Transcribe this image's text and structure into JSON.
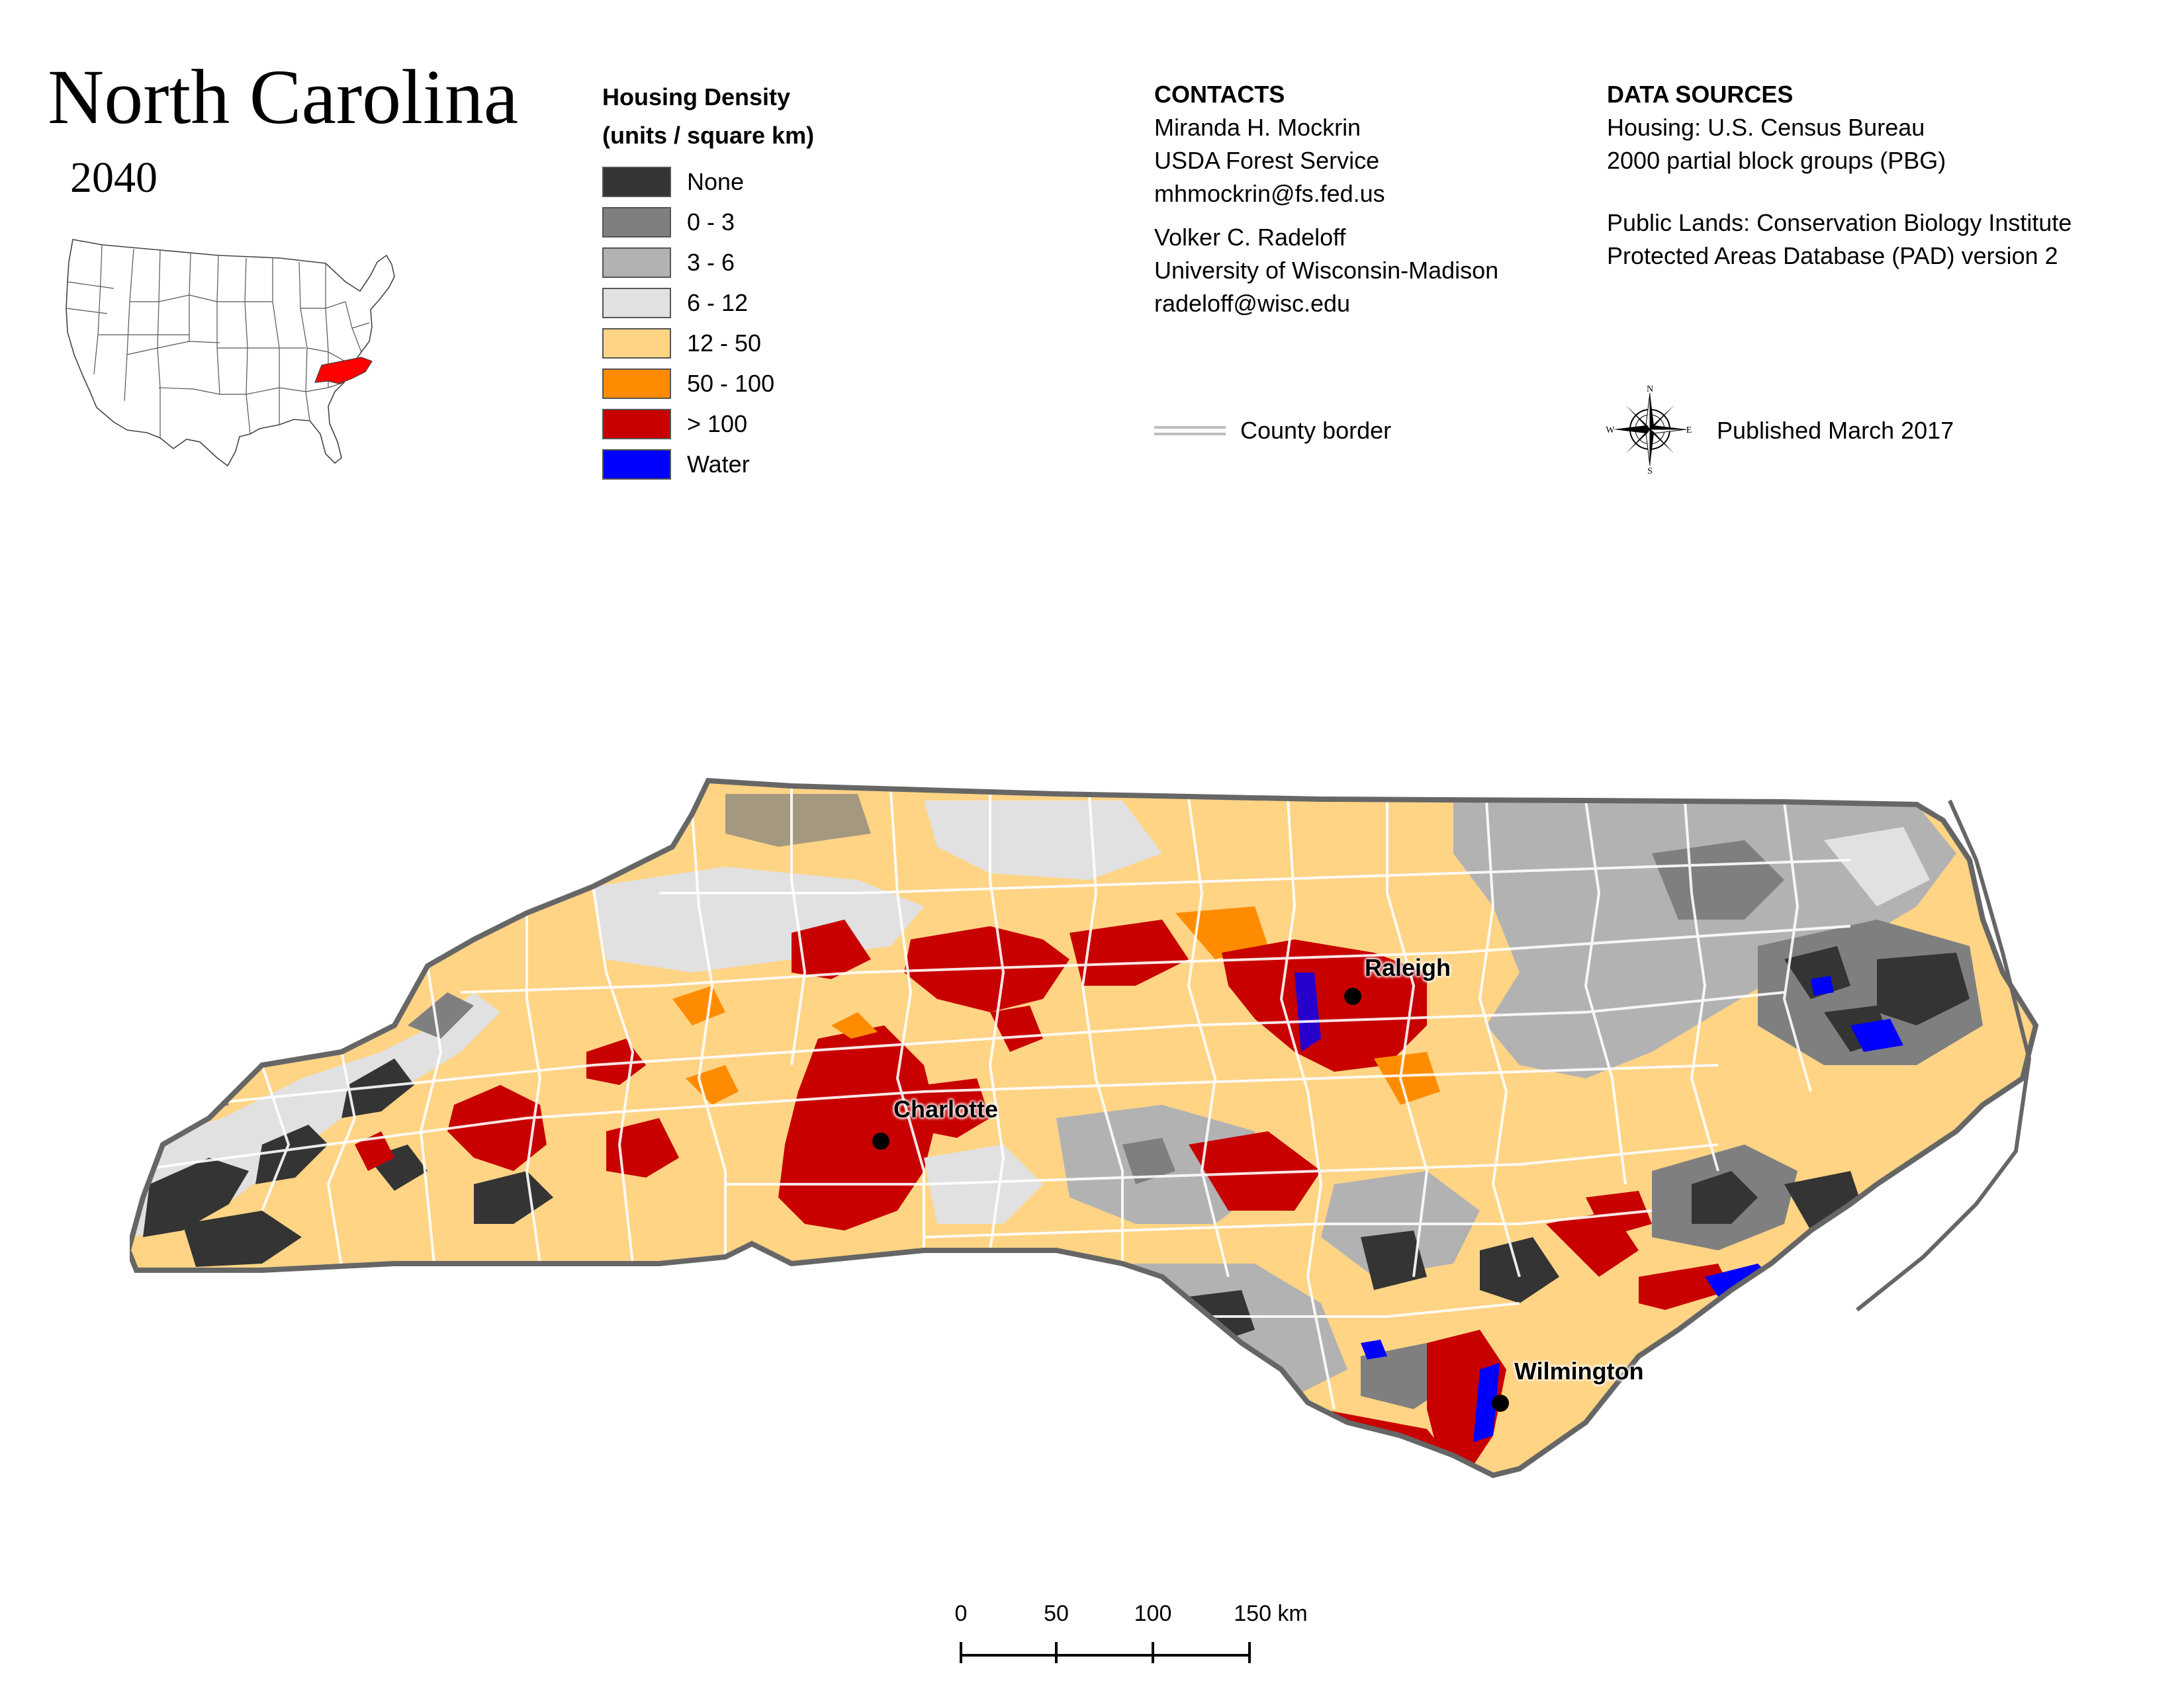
{
  "title": "North Carolina",
  "year": "2040",
  "legend": {
    "title_line1": "Housing Density",
    "title_line2": "(units / square km)",
    "items": [
      {
        "label": "None",
        "color": "#343434"
      },
      {
        "label": "0 - 3",
        "color": "#7f7f7f"
      },
      {
        "label": "3 - 6",
        "color": "#b2b2b2"
      },
      {
        "label": "6 - 12",
        "color": "#e1e1e1"
      },
      {
        "label": "12 - 50",
        "color": "#ffd485"
      },
      {
        "label": "50 - 100",
        "color": "#ff8c00"
      },
      {
        "label": "> 100",
        "color": "#c80000"
      },
      {
        "label": "Water",
        "color": "#0000ff"
      }
    ]
  },
  "contacts": {
    "heading": "CONTACTS",
    "person1": {
      "name": "Miranda H. Mockrin",
      "org": "USDA Forest Service",
      "email": "mhmockrin@fs.fed.us"
    },
    "person2": {
      "name": "Volker C. Radeloff",
      "org": "University of Wisconsin-Madison",
      "email": "radeloff@wisc.edu"
    }
  },
  "data_sources": {
    "heading": "DATA SOURCES",
    "housing_line1": "Housing: U.S. Census Bureau",
    "housing_line2": "2000 partial block groups (PBG)",
    "lands_line1": "Public Lands: Conservation Biology Institute",
    "lands_line2": "Protected Areas Database (PAD) version 2"
  },
  "county_border_label": "County border",
  "published": "Published March 2017",
  "compass": {
    "n": "N",
    "s": "S",
    "e": "E",
    "w": "W"
  },
  "cities": [
    {
      "name": "Raleigh"
    },
    {
      "name": "Charlotte"
    },
    {
      "name": "Wilmington"
    }
  ],
  "scale": {
    "ticks": [
      "0",
      "50",
      "100",
      "150 km"
    ]
  },
  "colors": {
    "state_outline": "#666666",
    "county_border": "#ffffff",
    "highlight_state": "#ff0000"
  }
}
